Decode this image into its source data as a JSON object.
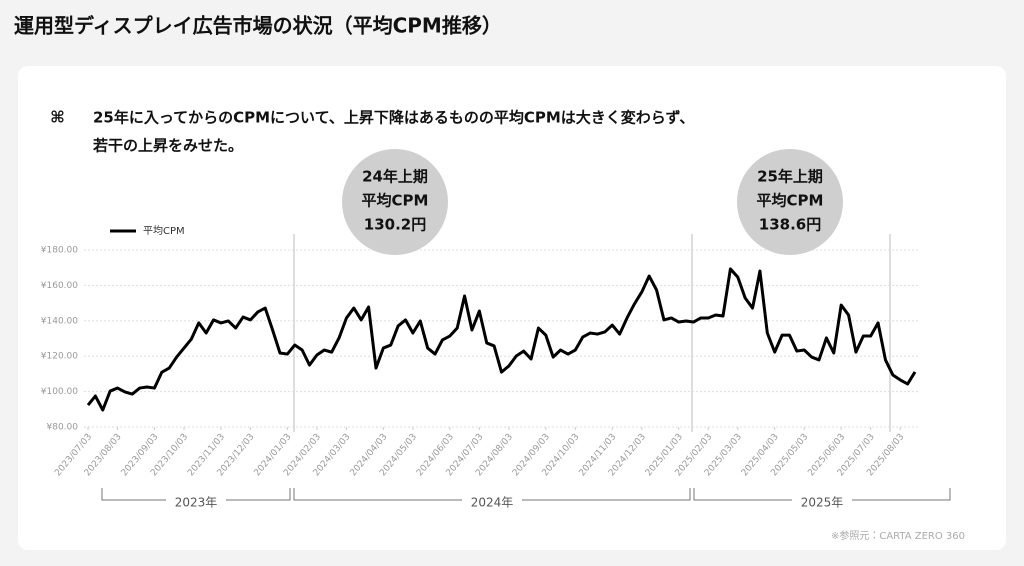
{
  "header": {
    "title": "運用型ディスプレイ広告市場の状況（平均CPM推移）"
  },
  "note": {
    "bullet": "⌘",
    "lines": [
      "25年に入ってからのCPMについて、上昇下降はあるものの平均CPMは大きく変わらず、",
      "若干の上昇をみせた。"
    ]
  },
  "source": "※参照元：CARTA ZERO 360",
  "chart_data": {
    "type": "line",
    "series": [
      {
        "name": "平均CPM",
        "color": "#000000",
        "values": [
          92.4,
          97.5,
          89.6,
          100.3,
          102,
          99.8,
          98.6,
          102,
          102.6,
          102,
          111,
          113.3,
          119.5,
          124.6,
          129.7,
          138.8,
          133.1,
          140.5,
          138.8,
          139.9,
          135.9,
          142.1,
          140.5,
          145,
          147.2,
          134.8,
          121.8,
          121.2,
          126.3,
          123.5,
          115,
          120.7,
          123.5,
          122.3,
          130.3,
          141.6,
          147.2,
          140.5,
          147.8,
          113.3,
          124.6,
          126.3,
          137.1,
          140.5,
          133.1,
          139.9,
          124.6,
          121.2,
          129.2,
          131.4,
          135.9,
          154,
          134.8,
          145.5,
          127.5,
          125.8,
          111,
          114.5,
          120.1,
          122.9,
          118.4,
          135.9,
          131.9,
          119.5,
          123.5,
          121.2,
          123.5,
          130.8,
          133.1,
          132.5,
          133.7,
          137.6,
          132.5,
          141.6,
          149.5,
          156.3,
          165.3,
          157.4,
          140.5,
          141.6,
          139.3,
          139.9,
          139.3,
          141.6,
          141.6,
          143.3,
          142.7,
          169.3,
          164.7,
          152.9,
          147.2,
          168.1,
          133.1,
          122.3,
          131.9,
          131.9,
          122.9,
          123.5,
          119.5,
          117.9,
          130.3,
          121.8,
          148.9,
          143.3,
          122.3,
          131.4,
          131.4,
          138.8,
          117.9,
          109.4,
          106.6,
          104.3,
          111.1
        ]
      }
    ],
    "xlim": [
      0,
      112
    ],
    "xticks": [
      {
        "value": 0,
        "label": "2023/07/03"
      },
      {
        "value": 4,
        "label": "2023/08/03"
      },
      {
        "value": 9,
        "label": "2023/09/03"
      },
      {
        "value": 13,
        "label": "2023/10/03"
      },
      {
        "value": 18,
        "label": "2023/11/03"
      },
      {
        "value": 22,
        "label": "2023/12/03"
      },
      {
        "value": 27,
        "label": "2024/01/03"
      },
      {
        "value": 31,
        "label": "2024/02/03"
      },
      {
        "value": 35,
        "label": "2024/03/03"
      },
      {
        "value": 40,
        "label": "2024/04/03"
      },
      {
        "value": 44,
        "label": "2024/05/03"
      },
      {
        "value": 49,
        "label": "2024/06/03"
      },
      {
        "value": 53,
        "label": "2024/07/03"
      },
      {
        "value": 57,
        "label": "2024/08/03"
      },
      {
        "value": 62,
        "label": "2024/09/03"
      },
      {
        "value": 66,
        "label": "2024/10/03"
      },
      {
        "value": 71,
        "label": "2024/11/03"
      },
      {
        "value": 75,
        "label": "2024/12/03"
      },
      {
        "value": 80,
        "label": "2025/01/03"
      },
      {
        "value": 84,
        "label": "2025/02/03"
      },
      {
        "value": 88,
        "label": "2025/03/03"
      },
      {
        "value": 93,
        "label": "2025/04/03"
      },
      {
        "value": 97,
        "label": "2025/05/03"
      },
      {
        "value": 102,
        "label": "2025/06/03"
      },
      {
        "value": 106,
        "label": "2025/07/03"
      },
      {
        "value": 110,
        "label": "2025/08/03"
      }
    ],
    "ylim": [
      80,
      180
    ],
    "yticks": [
      {
        "value": 80,
        "label": "¥80.00"
      },
      {
        "value": 100,
        "label": "¥100.00"
      },
      {
        "value": 120,
        "label": "¥120.00"
      },
      {
        "value": 140,
        "label": "¥140.00"
      },
      {
        "value": 160,
        "label": "¥160.00"
      },
      {
        "value": 180,
        "label": "¥180.00"
      }
    ],
    "grid": true,
    "legend": "top-left",
    "periods": [
      "2023年",
      "2024年",
      "2025年"
    ],
    "annotations": [
      {
        "lines": [
          "24年上期",
          "平均CPM",
          "130.2円"
        ]
      },
      {
        "lines": [
          "25年上期",
          "平均CPM",
          "138.6円"
        ]
      }
    ]
  }
}
